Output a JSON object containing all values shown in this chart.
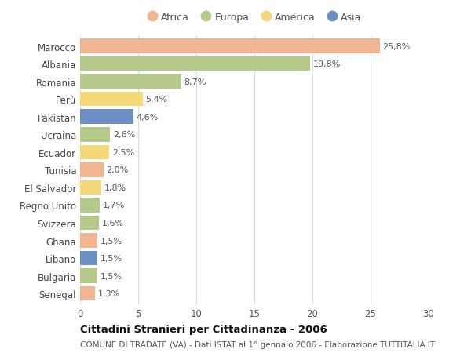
{
  "countries": [
    "Marocco",
    "Albania",
    "Romania",
    "Perù",
    "Pakistan",
    "Ucraina",
    "Ecuador",
    "Tunisia",
    "El Salvador",
    "Regno Unito",
    "Svizzera",
    "Ghana",
    "Libano",
    "Bulgaria",
    "Senegal"
  ],
  "values": [
    25.8,
    19.8,
    8.7,
    5.4,
    4.6,
    2.6,
    2.5,
    2.0,
    1.8,
    1.7,
    1.6,
    1.5,
    1.5,
    1.5,
    1.3
  ],
  "labels": [
    "25,8%",
    "19,8%",
    "8,7%",
    "5,4%",
    "4,6%",
    "2,6%",
    "2,5%",
    "2,0%",
    "1,8%",
    "1,7%",
    "1,6%",
    "1,5%",
    "1,5%",
    "1,5%",
    "1,3%"
  ],
  "continents": [
    "Africa",
    "Europa",
    "Europa",
    "America",
    "Asia",
    "Europa",
    "America",
    "Africa",
    "America",
    "Europa",
    "Europa",
    "Africa",
    "Asia",
    "Europa",
    "Africa"
  ],
  "continent_colors": {
    "Africa": "#F2B592",
    "Europa": "#B5C98A",
    "America": "#F5D87A",
    "Asia": "#6B8FC2"
  },
  "legend_items": [
    "Africa",
    "Europa",
    "America",
    "Asia"
  ],
  "legend_colors": [
    "#F2B592",
    "#B5C98A",
    "#F5D87A",
    "#6B8FC2"
  ],
  "xlim": [
    0,
    30
  ],
  "xticks": [
    0,
    5,
    10,
    15,
    20,
    25,
    30
  ],
  "title": "Cittadini Stranieri per Cittadinanza - 2006",
  "subtitle": "COMUNE DI TRADATE (VA) - Dati ISTAT al 1° gennaio 2006 - Elaborazione TUTTITALIA.IT",
  "bg_color": "#FFFFFF",
  "bar_height": 0.82,
  "label_fontsize": 8,
  "ytick_fontsize": 8.5,
  "xtick_fontsize": 8.5,
  "title_fontsize": 9.5,
  "subtitle_fontsize": 7.5
}
